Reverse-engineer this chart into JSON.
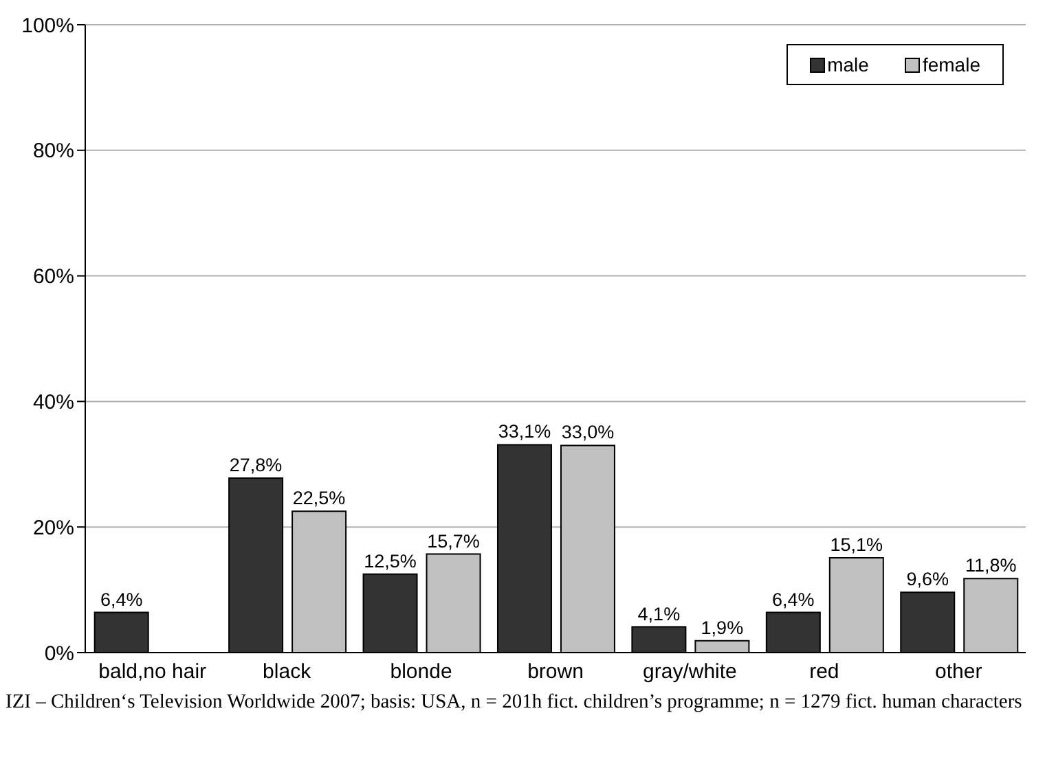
{
  "chart_data": {
    "type": "bar",
    "categories": [
      "bald,no hair",
      "black",
      "blonde",
      "brown",
      "gray/white",
      "red",
      "other"
    ],
    "series": [
      {
        "name": "male",
        "color": "#333333",
        "values": [
          6.4,
          27.8,
          12.5,
          33.1,
          4.1,
          6.4,
          9.6
        ],
        "value_labels": [
          "6,4%",
          "27,8%",
          "12,5%",
          "33,1%",
          "4,1%",
          "6,4%",
          "9,6%"
        ]
      },
      {
        "name": "female",
        "color": "#c0c0c0",
        "values": [
          null,
          22.5,
          15.7,
          33.0,
          1.9,
          15.1,
          11.8
        ],
        "value_labels": [
          null,
          "22,5%",
          "15,7%",
          "33,0%",
          "1,9%",
          "15,1%",
          "11,8%"
        ]
      }
    ],
    "ylim": [
      0,
      100
    ],
    "yticks": [
      {
        "value": 0,
        "label": "0%"
      },
      {
        "value": 20,
        "label": "20%"
      },
      {
        "value": 40,
        "label": "40%"
      },
      {
        "value": 60,
        "label": "60%"
      },
      {
        "value": 80,
        "label": "80%"
      },
      {
        "value": 100,
        "label": "100%"
      }
    ],
    "grid": "y",
    "legend": "top right",
    "annotations": [
      "IZI – Children‘s Television Worldwide 2007; basis: USA, n = 201h fict. children’s programme; n = 1279 fict. human characters"
    ]
  }
}
